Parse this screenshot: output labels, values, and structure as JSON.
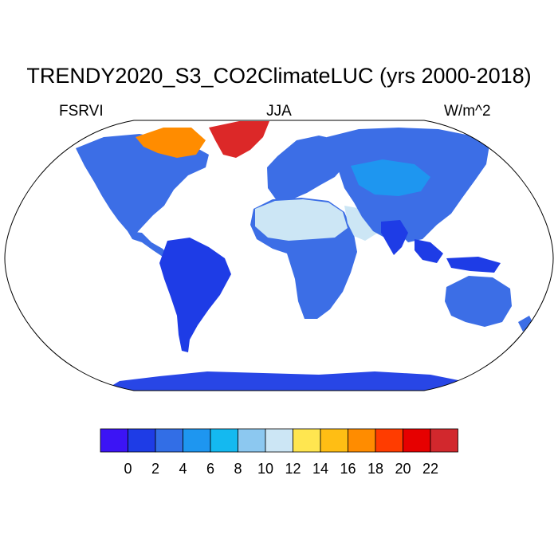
{
  "title": "TRENDY2020_S3_CO2ClimateLUC (yrs 2000-2018)",
  "left_label": "FSRVI",
  "center_label": "JJA",
  "right_label": "W/m^2",
  "colorbar": {
    "colors": [
      "#3c14f5",
      "#1e3ce6",
      "#326ee6",
      "#1e96f0",
      "#14b9f0",
      "#8cc8f0",
      "#cce6f5",
      "#ffe650",
      "#ffbe14",
      "#ff8c00",
      "#ff3c00",
      "#e60000",
      "#d2282d"
    ],
    "tick_labels": [
      "0",
      "2",
      "4",
      "6",
      "8",
      "10",
      "12",
      "14",
      "16",
      "18",
      "20",
      "22"
    ]
  },
  "colors": {
    "ocean": "#ffffff",
    "land_default": "#3c6ee6",
    "antarctica": "#2846e6",
    "sahara": "#cce6f5",
    "desert_yellow": "#ffe650",
    "greenland": "#dc2828",
    "arctic_hot": "#e60000",
    "outline": "#000000"
  }
}
